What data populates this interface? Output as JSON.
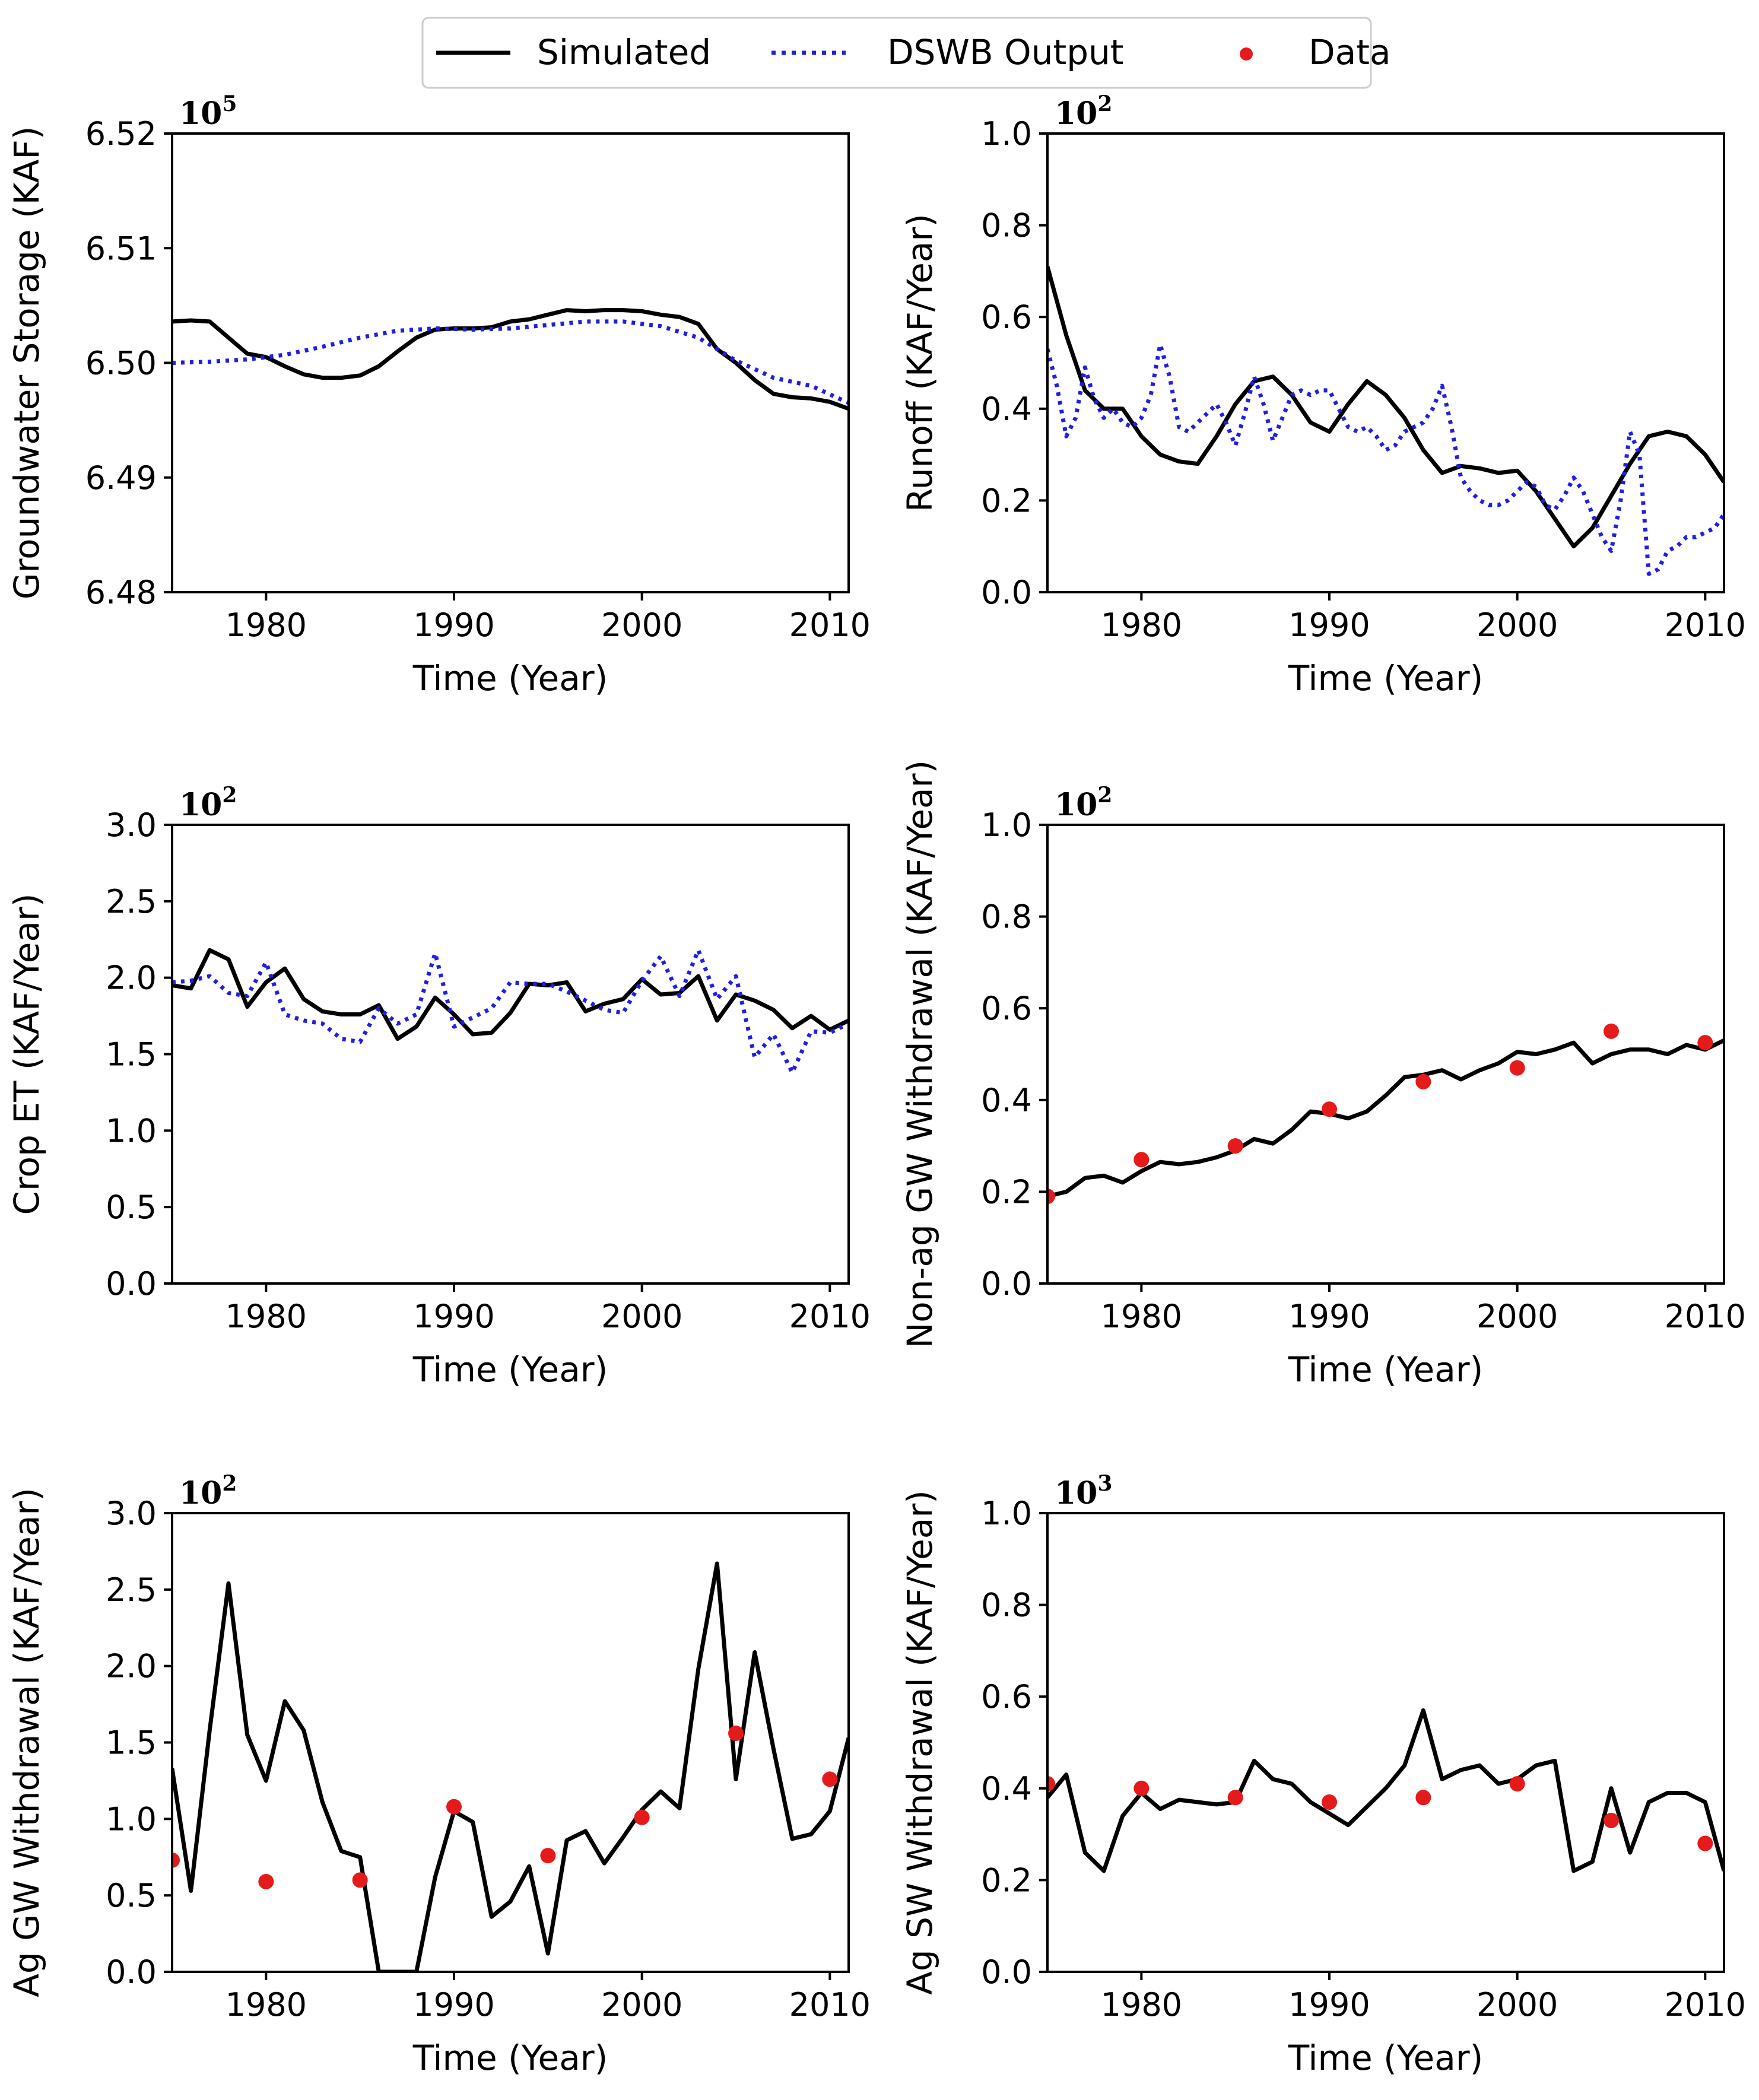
{
  "legend": {
    "placement": "top-center",
    "items": [
      {
        "name": "Simulated",
        "style": "line",
        "color": "#000000"
      },
      {
        "name": "DSWB Output",
        "style": "dotted",
        "color": "#1f1fe6"
      },
      {
        "name": "Data",
        "style": "marker",
        "color": "#e51b1b"
      }
    ]
  },
  "colors": {
    "simulated": "#000000",
    "dswb": "#1f1fe6",
    "data": "#e51b1b"
  },
  "chart_data": [
    {
      "type": "line",
      "ylabel": "Groundwater Storage (KAF)",
      "xlabel": "Time (Year)",
      "exponent_base": "10",
      "exponent_power": "5",
      "xlim": [
        1975,
        2011
      ],
      "ylim": [
        6.48,
        6.52
      ],
      "xticks": [
        1980,
        1990,
        2000,
        2010
      ],
      "yticks": [
        6.48,
        6.49,
        6.5,
        6.51,
        6.52
      ],
      "ytick_labels": [
        "6.48",
        "6.49",
        "6.50",
        "6.51",
        "6.52"
      ],
      "series": [
        {
          "name": "Simulated",
          "style": "solid",
          "x": [
            1975,
            1976,
            1977,
            1978,
            1979,
            1980,
            1981,
            1982,
            1983,
            1984,
            1985,
            1986,
            1987,
            1988,
            1989,
            1990,
            1991,
            1992,
            1993,
            1994,
            1995,
            1996,
            1997,
            1998,
            1999,
            2000,
            2001,
            2002,
            2003,
            2004,
            2005,
            2006,
            2007,
            2008,
            2009,
            2010,
            2011
          ],
          "y": [
            6.5036,
            6.5037,
            6.5036,
            6.5022,
            6.5008,
            6.5005,
            6.4997,
            6.499,
            6.4987,
            6.4987,
            6.4989,
            6.4997,
            6.501,
            6.5022,
            6.5029,
            6.503,
            6.503,
            6.5031,
            6.5036,
            6.5038,
            6.5042,
            6.5046,
            6.5045,
            6.5046,
            6.5046,
            6.5045,
            6.5042,
            6.504,
            6.5034,
            6.5012,
            6.5,
            6.4985,
            6.4973,
            6.497,
            6.4969,
            6.4966,
            6.496
          ]
        },
        {
          "name": "DSWB Output",
          "style": "dotted",
          "x": [
            1975,
            1977,
            1979,
            1981,
            1983,
            1985,
            1987,
            1989,
            1991,
            1993,
            1995,
            1997,
            1999,
            2001,
            2003,
            2005,
            2007,
            2009,
            2011
          ],
          "y": [
            6.5,
            6.5001,
            6.5003,
            6.5007,
            6.5014,
            6.5022,
            6.5028,
            6.503,
            6.5029,
            6.503,
            6.5033,
            6.5036,
            6.5036,
            6.5032,
            6.5022,
            6.5002,
            6.4987,
            6.498,
            6.4965
          ]
        }
      ]
    },
    {
      "type": "line",
      "ylabel": "Runoff (KAF/Year)",
      "xlabel": "Time (Year)",
      "exponent_base": "10",
      "exponent_power": "2",
      "xlim": [
        1975,
        2011
      ],
      "ylim": [
        0.0,
        1.0
      ],
      "xticks": [
        1980,
        1990,
        2000,
        2010
      ],
      "yticks": [
        0.0,
        0.2,
        0.4,
        0.6,
        0.8,
        1.0
      ],
      "ytick_labels": [
        "0.0",
        "0.2",
        "0.4",
        "0.6",
        "0.8",
        "1.0"
      ],
      "series": [
        {
          "name": "Simulated",
          "style": "solid",
          "x": [
            1975,
            1976,
            1977,
            1978,
            1979,
            1980,
            1981,
            1982,
            1983,
            1984,
            1985,
            1986,
            1987,
            1988,
            1989,
            1990,
            1991,
            1992,
            1993,
            1994,
            1995,
            1996,
            1997,
            1998,
            1999,
            2000,
            2001,
            2002,
            2003,
            2004,
            2005,
            2006,
            2007,
            2008,
            2009,
            2010,
            2011
          ],
          "y": [
            0.71,
            0.56,
            0.44,
            0.4,
            0.4,
            0.34,
            0.3,
            0.285,
            0.28,
            0.34,
            0.41,
            0.46,
            0.47,
            0.43,
            0.37,
            0.35,
            0.41,
            0.46,
            0.43,
            0.38,
            0.31,
            0.26,
            0.275,
            0.27,
            0.26,
            0.265,
            0.22,
            0.16,
            0.1,
            0.14,
            0.21,
            0.28,
            0.34,
            0.35,
            0.34,
            0.3,
            0.24
          ]
        },
        {
          "name": "DSWB Output",
          "style": "dotted",
          "x": [
            1975,
            1975.5,
            1976,
            1976.5,
            1977,
            1977.5,
            1978,
            1978.5,
            1979,
            1979.5,
            1980,
            1980.5,
            1981,
            1981.5,
            1982,
            1982.5,
            1983,
            1983.5,
            1984,
            1984.5,
            1985,
            1985.5,
            1986,
            1986.5,
            1987,
            1987.5,
            1988,
            1988.5,
            1989,
            1989.5,
            1990,
            1990.5,
            1991,
            1991.5,
            1992,
            1992.5,
            1993,
            1993.5,
            1994,
            1994.5,
            1995,
            1995.5,
            1996,
            1996.5,
            1997,
            1997.5,
            1998,
            1998.5,
            1999,
            1999.5,
            2000,
            2000.5,
            2001,
            2001.5,
            2002,
            2002.5,
            2003,
            2003.5,
            2004,
            2004.5,
            2005,
            2005.5,
            2006,
            2006.5,
            2007,
            2007.5,
            2008,
            2008.5,
            2009,
            2009.5,
            2010,
            2010.5,
            2011
          ],
          "y": [
            0.53,
            0.45,
            0.34,
            0.38,
            0.49,
            0.42,
            0.38,
            0.4,
            0.37,
            0.36,
            0.38,
            0.43,
            0.54,
            0.47,
            0.36,
            0.35,
            0.37,
            0.39,
            0.41,
            0.37,
            0.32,
            0.39,
            0.47,
            0.41,
            0.33,
            0.38,
            0.43,
            0.44,
            0.43,
            0.44,
            0.44,
            0.4,
            0.36,
            0.35,
            0.36,
            0.34,
            0.31,
            0.32,
            0.35,
            0.36,
            0.37,
            0.4,
            0.45,
            0.36,
            0.25,
            0.22,
            0.2,
            0.19,
            0.19,
            0.2,
            0.22,
            0.24,
            0.23,
            0.19,
            0.18,
            0.21,
            0.25,
            0.22,
            0.17,
            0.12,
            0.09,
            0.2,
            0.35,
            0.3,
            0.04,
            0.05,
            0.09,
            0.1,
            0.12,
            0.12,
            0.13,
            0.14,
            0.17
          ]
        }
      ]
    },
    {
      "type": "line",
      "ylabel": "Crop ET (KAF/Year)",
      "xlabel": "Time (Year)",
      "exponent_base": "10",
      "exponent_power": "2",
      "xlim": [
        1975,
        2011
      ],
      "ylim": [
        0.0,
        3.0
      ],
      "xticks": [
        1980,
        1990,
        2000,
        2010
      ],
      "yticks": [
        0.0,
        0.5,
        1.0,
        1.5,
        2.0,
        2.5,
        3.0
      ],
      "ytick_labels": [
        "0.0",
        "0.5",
        "1.0",
        "1.5",
        "2.0",
        "2.5",
        "3.0"
      ],
      "series": [
        {
          "name": "Simulated",
          "style": "solid",
          "x": [
            1975,
            1976,
            1977,
            1978,
            1979,
            1980,
            1981,
            1982,
            1983,
            1984,
            1985,
            1986,
            1987,
            1988,
            1989,
            1990,
            1991,
            1992,
            1993,
            1994,
            1995,
            1996,
            1997,
            1998,
            1999,
            2000,
            2001,
            2002,
            2003,
            2004,
            2005,
            2006,
            2007,
            2008,
            2009,
            2010,
            2011
          ],
          "y": [
            1.95,
            1.93,
            2.18,
            2.12,
            1.81,
            1.97,
            2.06,
            1.86,
            1.78,
            1.76,
            1.76,
            1.82,
            1.6,
            1.68,
            1.87,
            1.76,
            1.63,
            1.64,
            1.77,
            1.96,
            1.95,
            1.97,
            1.78,
            1.83,
            1.86,
            1.99,
            1.89,
            1.9,
            2.01,
            1.72,
            1.89,
            1.85,
            1.79,
            1.67,
            1.75,
            1.66,
            1.72
          ]
        },
        {
          "name": "DSWB Output",
          "style": "dotted",
          "x": [
            1975,
            1976,
            1977,
            1978,
            1979,
            1980,
            1981,
            1982,
            1983,
            1984,
            1985,
            1986,
            1987,
            1988,
            1989,
            1990,
            1991,
            1992,
            1993,
            1994,
            1995,
            1996,
            1997,
            1998,
            1999,
            2000,
            2001,
            2002,
            2003,
            2004,
            2005,
            2006,
            2007,
            2008,
            2009,
            2010,
            2011
          ],
          "y": [
            1.97,
            1.98,
            2.01,
            1.9,
            1.88,
            2.1,
            1.76,
            1.72,
            1.7,
            1.6,
            1.58,
            1.8,
            1.7,
            1.76,
            2.16,
            1.68,
            1.74,
            1.8,
            1.97,
            1.96,
            1.96,
            1.91,
            1.85,
            1.79,
            1.77,
            1.98,
            2.14,
            1.88,
            2.18,
            1.86,
            2.01,
            1.48,
            1.63,
            1.38,
            1.65,
            1.64,
            1.7
          ]
        }
      ]
    },
    {
      "type": "line",
      "ylabel": "Non-ag GW Withdrawal (KAF/Year)",
      "xlabel": "Time (Year)",
      "exponent_base": "10",
      "exponent_power": "2",
      "xlim": [
        1975,
        2011
      ],
      "ylim": [
        0.0,
        1.0
      ],
      "xticks": [
        1980,
        1990,
        2000,
        2010
      ],
      "yticks": [
        0.0,
        0.2,
        0.4,
        0.6,
        0.8,
        1.0
      ],
      "ytick_labels": [
        "0.0",
        "0.2",
        "0.4",
        "0.6",
        "0.8",
        "1.0"
      ],
      "series": [
        {
          "name": "Simulated",
          "style": "solid",
          "x": [
            1975,
            1976,
            1977,
            1978,
            1979,
            1980,
            1981,
            1982,
            1983,
            1984,
            1985,
            1986,
            1987,
            1988,
            1989,
            1990,
            1991,
            1992,
            1993,
            1994,
            1995,
            1996,
            1997,
            1998,
            1999,
            2000,
            2001,
            2002,
            2003,
            2004,
            2005,
            2006,
            2007,
            2008,
            2009,
            2010,
            2011
          ],
          "y": [
            0.19,
            0.2,
            0.23,
            0.235,
            0.22,
            0.245,
            0.265,
            0.26,
            0.265,
            0.275,
            0.29,
            0.315,
            0.305,
            0.335,
            0.375,
            0.37,
            0.36,
            0.375,
            0.41,
            0.45,
            0.455,
            0.465,
            0.445,
            0.465,
            0.48,
            0.505,
            0.5,
            0.51,
            0.525,
            0.48,
            0.5,
            0.51,
            0.51,
            0.5,
            0.52,
            0.51,
            0.53
          ]
        },
        {
          "name": "Data",
          "style": "marker",
          "x": [
            1975,
            1980,
            1985,
            1990,
            1995,
            2000,
            2005,
            2010
          ],
          "y": [
            0.19,
            0.27,
            0.3,
            0.38,
            0.44,
            0.47,
            0.55,
            0.525
          ]
        }
      ]
    },
    {
      "type": "line",
      "ylabel": "Ag GW Withdrawal (KAF/Year)",
      "xlabel": "Time (Year)",
      "exponent_base": "10",
      "exponent_power": "2",
      "xlim": [
        1975,
        2011
      ],
      "ylim": [
        0.0,
        3.0
      ],
      "xticks": [
        1980,
        1990,
        2000,
        2010
      ],
      "yticks": [
        0.0,
        0.5,
        1.0,
        1.5,
        2.0,
        2.5,
        3.0
      ],
      "ytick_labels": [
        "0.0",
        "0.5",
        "1.0",
        "1.5",
        "2.0",
        "2.5",
        "3.0"
      ],
      "series": [
        {
          "name": "Simulated",
          "style": "solid",
          "x": [
            1975,
            1976,
            1977,
            1978,
            1979,
            1980,
            1981,
            1982,
            1983,
            1984,
            1985,
            1986,
            1987,
            1988,
            1989,
            1990,
            1991,
            1992,
            1993,
            1994,
            1995,
            1996,
            1997,
            1998,
            1999,
            2000,
            2001,
            2002,
            2003,
            2004,
            2005,
            2006,
            2007,
            2008,
            2009,
            2010,
            2011
          ],
          "y": [
            1.33,
            0.53,
            1.58,
            2.54,
            1.55,
            1.25,
            1.77,
            1.58,
            1.11,
            0.79,
            0.75,
            0.0,
            0.0,
            0.0,
            0.62,
            1.05,
            0.98,
            0.36,
            0.46,
            0.69,
            0.12,
            0.86,
            0.92,
            0.71,
            0.88,
            1.06,
            1.18,
            1.07,
            1.98,
            2.67,
            1.26,
            2.09,
            1.46,
            0.87,
            0.9,
            1.05,
            1.53
          ]
        },
        {
          "name": "Data",
          "style": "marker",
          "x": [
            1975,
            1980,
            1985,
            1990,
            1995,
            2000,
            2005,
            2010
          ],
          "y": [
            0.73,
            0.59,
            0.6,
            1.08,
            0.76,
            1.01,
            1.56,
            1.26
          ]
        }
      ]
    },
    {
      "type": "line",
      "ylabel": "Ag SW Withdrawal (KAF/Year)",
      "xlabel": "Time (Year)",
      "exponent_base": "10",
      "exponent_power": "3",
      "xlim": [
        1975,
        2011
      ],
      "ylim": [
        0.0,
        1.0
      ],
      "xticks": [
        1980,
        1990,
        2000,
        2010
      ],
      "yticks": [
        0.0,
        0.2,
        0.4,
        0.6,
        0.8,
        1.0
      ],
      "ytick_labels": [
        "0.0",
        "0.2",
        "0.4",
        "0.6",
        "0.8",
        "1.0"
      ],
      "series": [
        {
          "name": "Simulated",
          "style": "solid",
          "x": [
            1975,
            1976,
            1977,
            1978,
            1979,
            1980,
            1981,
            1982,
            1983,
            1984,
            1985,
            1986,
            1987,
            1988,
            1989,
            1990,
            1991,
            1992,
            1993,
            1994,
            1995,
            1996,
            1997,
            1998,
            1999,
            2000,
            2001,
            2002,
            2003,
            2004,
            2005,
            2006,
            2007,
            2008,
            2009,
            2010,
            2011
          ],
          "y": [
            0.38,
            0.43,
            0.26,
            0.22,
            0.34,
            0.39,
            0.355,
            0.375,
            0.37,
            0.365,
            0.37,
            0.46,
            0.42,
            0.41,
            0.37,
            0.345,
            0.32,
            0.36,
            0.4,
            0.45,
            0.57,
            0.42,
            0.44,
            0.45,
            0.41,
            0.42,
            0.45,
            0.46,
            0.22,
            0.24,
            0.4,
            0.26,
            0.37,
            0.39,
            0.39,
            0.37,
            0.22
          ]
        },
        {
          "name": "Data",
          "style": "marker",
          "x": [
            1975,
            1980,
            1985,
            1990,
            1995,
            2000,
            2005,
            2010
          ],
          "y": [
            0.41,
            0.4,
            0.38,
            0.37,
            0.38,
            0.41,
            0.33,
            0.28
          ]
        }
      ]
    }
  ]
}
